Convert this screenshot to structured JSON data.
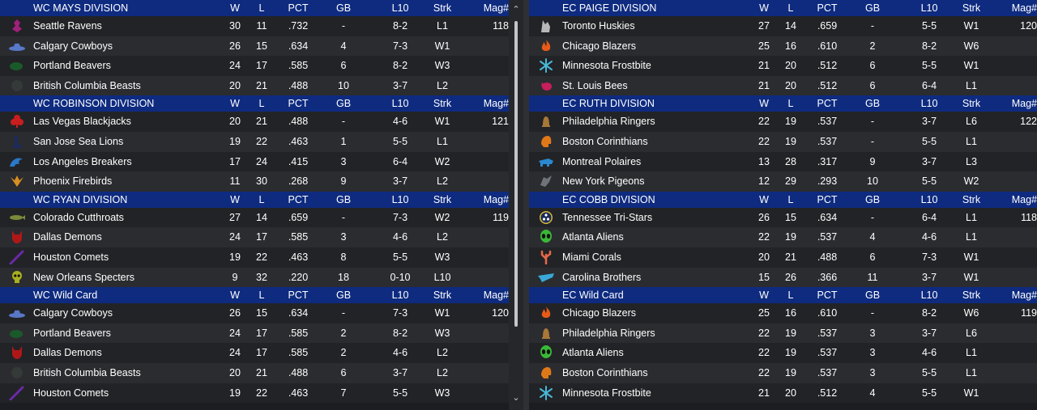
{
  "columns": {
    "w": "W",
    "l": "L",
    "pct": "PCT",
    "gb": "GB",
    "l10": "L10",
    "strk": "Strk",
    "mag": "Mag#"
  },
  "left": [
    {
      "title": "WC MAYS DIVISION",
      "rows": [
        {
          "team": "Seattle Ravens",
          "w": "30",
          "l": "11",
          "pct": ".732",
          "gb": "-",
          "l10": "8-2",
          "strk": "L1",
          "mag": "118",
          "icon": "raven-icon",
          "color": "#a0207a"
        },
        {
          "team": "Calgary Cowboys",
          "w": "26",
          "l": "15",
          "pct": ".634",
          "gb": "4",
          "l10": "7-3",
          "strk": "W1",
          "mag": "",
          "icon": "cowboy-hat-icon",
          "color": "#5878c8"
        },
        {
          "team": "Portland Beavers",
          "w": "24",
          "l": "17",
          "pct": ".585",
          "gb": "6",
          "l10": "8-2",
          "strk": "W3",
          "mag": "",
          "icon": "beaver-icon",
          "color": "#1a5a2a"
        },
        {
          "team": "British Columbia Beasts",
          "w": "20",
          "l": "21",
          "pct": ".488",
          "gb": "10",
          "l10": "3-7",
          "strk": "L2",
          "mag": "",
          "icon": "beast-icon",
          "color": "#333a38"
        }
      ]
    },
    {
      "title": "WC ROBINSON DIVISION",
      "rows": [
        {
          "team": "Las Vegas Blackjacks",
          "w": "20",
          "l": "21",
          "pct": ".488",
          "gb": "-",
          "l10": "4-6",
          "strk": "W1",
          "mag": "121",
          "icon": "club-suit-icon",
          "color": "#c81e1e"
        },
        {
          "team": "San Jose Sea Lions",
          "w": "19",
          "l": "22",
          "pct": ".463",
          "gb": "1",
          "l10": "5-5",
          "strk": "L1",
          "mag": "",
          "icon": "sea-lion-icon",
          "color": "#1e2a5a"
        },
        {
          "team": "Los Angeles Breakers",
          "w": "17",
          "l": "24",
          "pct": ".415",
          "gb": "3",
          "l10": "6-4",
          "strk": "W2",
          "mag": "",
          "icon": "wave-icon",
          "color": "#2a78c8"
        },
        {
          "team": "Phoenix Firebirds",
          "w": "11",
          "l": "30",
          "pct": ".268",
          "gb": "9",
          "l10": "3-7",
          "strk": "L2",
          "mag": "",
          "icon": "firebird-icon",
          "color": "#d89020"
        }
      ]
    },
    {
      "title": "WC RYAN DIVISION",
      "rows": [
        {
          "team": "Colorado Cutthroats",
          "w": "27",
          "l": "14",
          "pct": ".659",
          "gb": "-",
          "l10": "7-3",
          "strk": "W2",
          "mag": "119",
          "icon": "fish-icon",
          "color": "#7a8a3a"
        },
        {
          "team": "Dallas Demons",
          "w": "24",
          "l": "17",
          "pct": ".585",
          "gb": "3",
          "l10": "4-6",
          "strk": "L2",
          "mag": "",
          "icon": "demon-icon",
          "color": "#b01818"
        },
        {
          "team": "Houston Comets",
          "w": "19",
          "l": "22",
          "pct": ".463",
          "gb": "8",
          "l10": "5-5",
          "strk": "W3",
          "mag": "",
          "icon": "comet-icon",
          "color": "#6a2aa8"
        },
        {
          "team": "New Orleans Specters",
          "w": "9",
          "l": "32",
          "pct": ".220",
          "gb": "18",
          "l10": "0-10",
          "strk": "L10",
          "mag": "",
          "icon": "skull-icon",
          "color": "#a8b020"
        }
      ]
    },
    {
      "title": "WC  Wild Card",
      "rows": [
        {
          "team": "Calgary Cowboys",
          "w": "26",
          "l": "15",
          "pct": ".634",
          "gb": "-",
          "l10": "7-3",
          "strk": "W1",
          "mag": "120",
          "icon": "cowboy-hat-icon",
          "color": "#5878c8"
        },
        {
          "team": "Portland Beavers",
          "w": "24",
          "l": "17",
          "pct": ".585",
          "gb": "2",
          "l10": "8-2",
          "strk": "W3",
          "mag": "",
          "icon": "beaver-icon",
          "color": "#1a5a2a"
        },
        {
          "team": "Dallas Demons",
          "w": "24",
          "l": "17",
          "pct": ".585",
          "gb": "2",
          "l10": "4-6",
          "strk": "L2",
          "mag": "",
          "icon": "demon-icon",
          "color": "#b01818"
        },
        {
          "team": "British Columbia Beasts",
          "w": "20",
          "l": "21",
          "pct": ".488",
          "gb": "6",
          "l10": "3-7",
          "strk": "L2",
          "mag": "",
          "icon": "beast-icon",
          "color": "#333a38"
        },
        {
          "team": "Houston Comets",
          "w": "19",
          "l": "22",
          "pct": ".463",
          "gb": "7",
          "l10": "5-5",
          "strk": "W3",
          "mag": "",
          "icon": "comet-icon",
          "color": "#6a2aa8"
        }
      ]
    }
  ],
  "right": [
    {
      "title": "EC PAIGE DIVISION",
      "rows": [
        {
          "team": "Toronto Huskies",
          "w": "27",
          "l": "14",
          "pct": ".659",
          "gb": "-",
          "l10": "5-5",
          "strk": "W1",
          "mag": "120",
          "icon": "husky-icon",
          "color": "#b8b8b8"
        },
        {
          "team": "Chicago Blazers",
          "w": "25",
          "l": "16",
          "pct": ".610",
          "gb": "2",
          "l10": "8-2",
          "strk": "W6",
          "mag": "",
          "icon": "flame-icon",
          "color": "#e85a18"
        },
        {
          "team": "Minnesota Frostbite",
          "w": "21",
          "l": "20",
          "pct": ".512",
          "gb": "6",
          "l10": "5-5",
          "strk": "W1",
          "mag": "",
          "icon": "snowflake-icon",
          "color": "#48b8d8"
        },
        {
          "team": "St. Louis Bees",
          "w": "21",
          "l": "20",
          "pct": ".512",
          "gb": "6",
          "l10": "6-4",
          "strk": "L1",
          "mag": "",
          "icon": "bee-icon",
          "color": "#c81e5a"
        }
      ]
    },
    {
      "title": "EC RUTH DIVISION",
      "rows": [
        {
          "team": "Philadelphia Ringers",
          "w": "22",
          "l": "19",
          "pct": ".537",
          "gb": "-",
          "l10": "3-7",
          "strk": "L6",
          "mag": "122",
          "icon": "bell-icon",
          "color": "#a87838"
        },
        {
          "team": "Boston Corinthians",
          "w": "22",
          "l": "19",
          "pct": ".537",
          "gb": "-",
          "l10": "5-5",
          "strk": "L1",
          "mag": "",
          "icon": "helmet-icon",
          "color": "#e07818"
        },
        {
          "team": "Montreal Polaires",
          "w": "13",
          "l": "28",
          "pct": ".317",
          "gb": "9",
          "l10": "3-7",
          "strk": "L3",
          "mag": "",
          "icon": "polar-bear-icon",
          "color": "#2a88d0"
        },
        {
          "team": "New York Pigeons",
          "w": "12",
          "l": "29",
          "pct": ".293",
          "gb": "10",
          "l10": "5-5",
          "strk": "W2",
          "mag": "",
          "icon": "pigeon-icon",
          "color": "#707478"
        }
      ]
    },
    {
      "title": "EC COBB DIVISION",
      "rows": [
        {
          "team": "Tennessee Tri-Stars",
          "w": "26",
          "l": "15",
          "pct": ".634",
          "gb": "-",
          "l10": "6-4",
          "strk": "L1",
          "mag": "118",
          "icon": "tri-star-icon",
          "color": "#d8b838"
        },
        {
          "team": "Atlanta Aliens",
          "w": "22",
          "l": "19",
          "pct": ".537",
          "gb": "4",
          "l10": "4-6",
          "strk": "L1",
          "mag": "",
          "icon": "alien-icon",
          "color": "#3ab838"
        },
        {
          "team": "Miami Corals",
          "w": "20",
          "l": "21",
          "pct": ".488",
          "gb": "6",
          "l10": "7-3",
          "strk": "W1",
          "mag": "",
          "icon": "coral-icon",
          "color": "#e86848"
        },
        {
          "team": "Carolina Brothers",
          "w": "15",
          "l": "26",
          "pct": ".366",
          "gb": "11",
          "l10": "3-7",
          "strk": "W1",
          "mag": "",
          "icon": "state-outline-icon",
          "color": "#38a8d8"
        }
      ]
    },
    {
      "title": "EC  Wild Card",
      "rows": [
        {
          "team": "Chicago Blazers",
          "w": "25",
          "l": "16",
          "pct": ".610",
          "gb": "-",
          "l10": "8-2",
          "strk": "W6",
          "mag": "119",
          "icon": "flame-icon",
          "color": "#e85a18"
        },
        {
          "team": "Philadelphia Ringers",
          "w": "22",
          "l": "19",
          "pct": ".537",
          "gb": "3",
          "l10": "3-7",
          "strk": "L6",
          "mag": "",
          "icon": "bell-icon",
          "color": "#a87838"
        },
        {
          "team": "Atlanta Aliens",
          "w": "22",
          "l": "19",
          "pct": ".537",
          "gb": "3",
          "l10": "4-6",
          "strk": "L1",
          "mag": "",
          "icon": "alien-icon",
          "color": "#3ab838"
        },
        {
          "team": "Boston Corinthians",
          "w": "22",
          "l": "19",
          "pct": ".537",
          "gb": "3",
          "l10": "5-5",
          "strk": "L1",
          "mag": "",
          "icon": "helmet-icon",
          "color": "#e07818"
        },
        {
          "team": "Minnesota Frostbite",
          "w": "21",
          "l": "20",
          "pct": ".512",
          "gb": "4",
          "l10": "5-5",
          "strk": "W1",
          "mag": "",
          "icon": "snowflake-icon",
          "color": "#48b8d8"
        }
      ]
    }
  ]
}
